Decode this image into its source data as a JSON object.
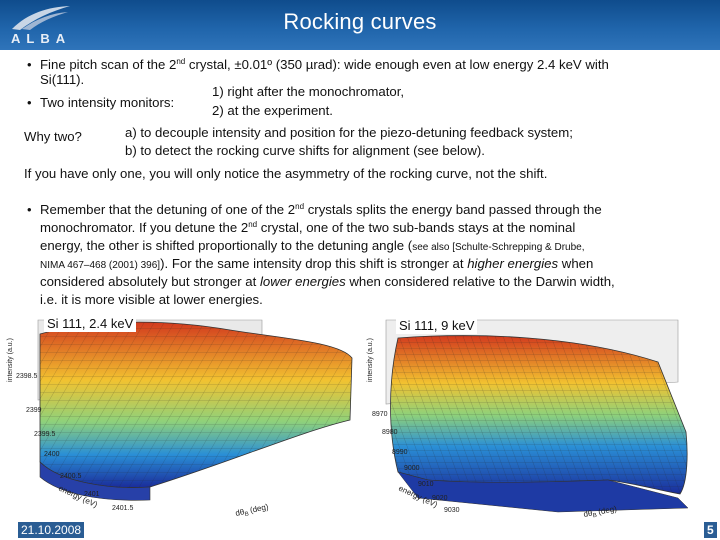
{
  "header": {
    "title": "Rocking curves",
    "logo_text": "ALBA"
  },
  "intro": {
    "line1": "Fine pitch scan of the 2",
    "line1_sup": "nd",
    "line1_rest": " crystal, ±0.01º (350 µrad): wide enough even at low energy 2.4 keV with",
    "line2": "Si(111).",
    "monitors_label": "Two intensity monitors:",
    "monitor_1": "1)  right after the monochromator,",
    "monitor_2": "2)  at the experiment.",
    "why_label": "Why two?",
    "why_a": "a)  to decouple intensity and position for the piezo-detuning feedback system;",
    "why_b": "b)  to detect the rocking curve shifts for alignment (see below).",
    "only_one": "If you have only one, you will only notice the asymmetry of the rocking curve, not the shift."
  },
  "remember": {
    "l1": "Remember that the detuning of one of the 2",
    "l1_sup": "nd",
    "l1_rest": " crystals splits the energy band passed through the",
    "l2": "monochromator. If you detune the 2",
    "l2_sup": "nd",
    "l2_rest": " crystal, one of the two sub-bands stays at the nominal",
    "l3": "energy, the other is shifted proportionally to the detuning angle (",
    "l3_small": "see also [Schulte-Schrepping & Drube,",
    "l4_small": "NIMA 467–468 (2001) 396]",
    "l4_rest": "). For the same intensity drop this shift is stronger at ",
    "l4_em": "higher energies",
    "l4_end": " when",
    "l5": "considered absolutely but stronger at ",
    "l5_em": "lower energies",
    "l5_end": " when considered relative to the Darwin width,",
    "l6": "i.e. it is more visible at lower energies."
  },
  "figures": {
    "left": {
      "label": "Si 111, 2.4 keV",
      "z_axis": "intensity (a.u.)",
      "x_axis": "energy (eV)",
      "y_axis": "dθ",
      "y_axis_sub": "B",
      "y_axis_unit": "(deg)",
      "ticks": [
        "2398.5",
        "2399",
        "2399.5",
        "2400",
        "2400.5",
        "2401",
        "2401.5"
      ]
    },
    "right": {
      "label": "Si 111, 9 keV",
      "z_axis": "intensity (a.u.)",
      "x_axis": "energy (eV)",
      "y_axis": "dθ",
      "y_axis_sub": "B",
      "y_axis_unit": "(deg)",
      "ticks": [
        "8970",
        "8980",
        "8990",
        "9000",
        "9010",
        "9020",
        "9030"
      ]
    }
  },
  "footer": {
    "date": "21.10.2008",
    "page": "5"
  },
  "colors": {
    "header_blue": "#1f64aa",
    "surface_high": "#d23a1e",
    "surface_mid": "#f2c230",
    "surface_low": "#2a8fd6",
    "surface_base": "#1a2c9a"
  }
}
